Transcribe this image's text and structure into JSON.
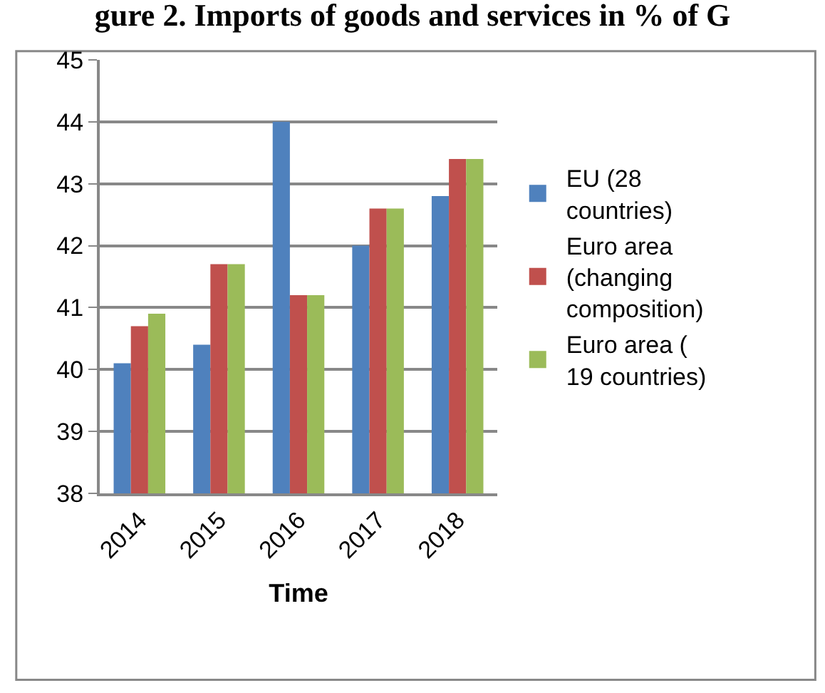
{
  "chart_data": {
    "type": "bar",
    "title": "gure 2. Imports of goods and services in % of G",
    "xlabel": "Time",
    "categories": [
      "2014",
      "2015",
      "2016",
      "2017",
      "2018"
    ],
    "series": [
      {
        "name": "EU (28 countries)",
        "color": "#4f81bd",
        "values": [
          40.1,
          40.4,
          44.0,
          42.0,
          42.8
        ]
      },
      {
        "name": "Euro area (changing composition)",
        "color": "#c0504d",
        "values": [
          40.7,
          41.7,
          41.2,
          42.6,
          43.4
        ]
      },
      {
        "name": "Euro area ( 19 countries)",
        "color": "#9bbb59",
        "values": [
          40.9,
          41.7,
          41.2,
          42.6,
          43.4
        ]
      }
    ],
    "ylim": [
      38,
      45
    ],
    "yticks": [
      38,
      39,
      40,
      41,
      42,
      43,
      44,
      45
    ],
    "grid": "y",
    "legend": "right"
  }
}
